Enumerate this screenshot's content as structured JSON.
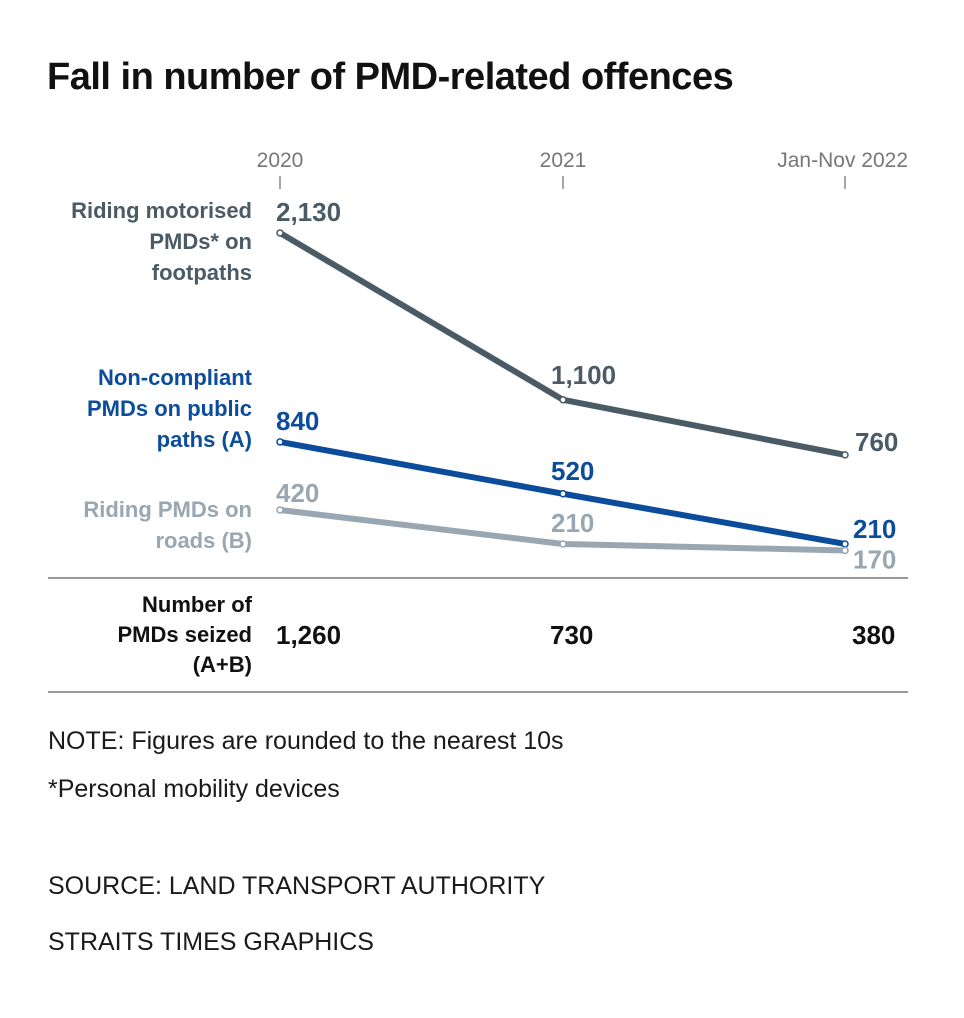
{
  "chart_data": {
    "type": "line",
    "title": "Fall in number of PMD-related offences",
    "categories": [
      "2020",
      "2021",
      "Jan-Nov 2022"
    ],
    "ylim": [
      0,
      2130
    ],
    "grid": false,
    "legend": "inline-left",
    "series": [
      {
        "name": "Riding motorised PMDs* on footpaths",
        "values": [
          2130,
          1100,
          760
        ],
        "labels": [
          "2,130",
          "1,100",
          "760"
        ],
        "color": "#4b5b66"
      },
      {
        "name": "Non-compliant PMDs on public paths (A)",
        "values": [
          840,
          520,
          210
        ],
        "labels": [
          "840",
          "520",
          "210"
        ],
        "color": "#0b4c9b"
      },
      {
        "name": "Riding PMDs on roads (B)",
        "values": [
          420,
          210,
          170
        ],
        "labels": [
          "420",
          "210",
          "170"
        ],
        "color": "#98a7b2"
      }
    ],
    "table": {
      "label": "Number of PMDs seized (A+B)",
      "values": [
        "1,260",
        "730",
        "380"
      ]
    }
  },
  "notes": {
    "note": "NOTE: Figures are rounded to the nearest 10s",
    "footnote": "*Personal mobility devices",
    "source": "SOURCE: LAND TRANSPORT AUTHORITY",
    "credit": "STRAITS TIMES GRAPHICS"
  }
}
